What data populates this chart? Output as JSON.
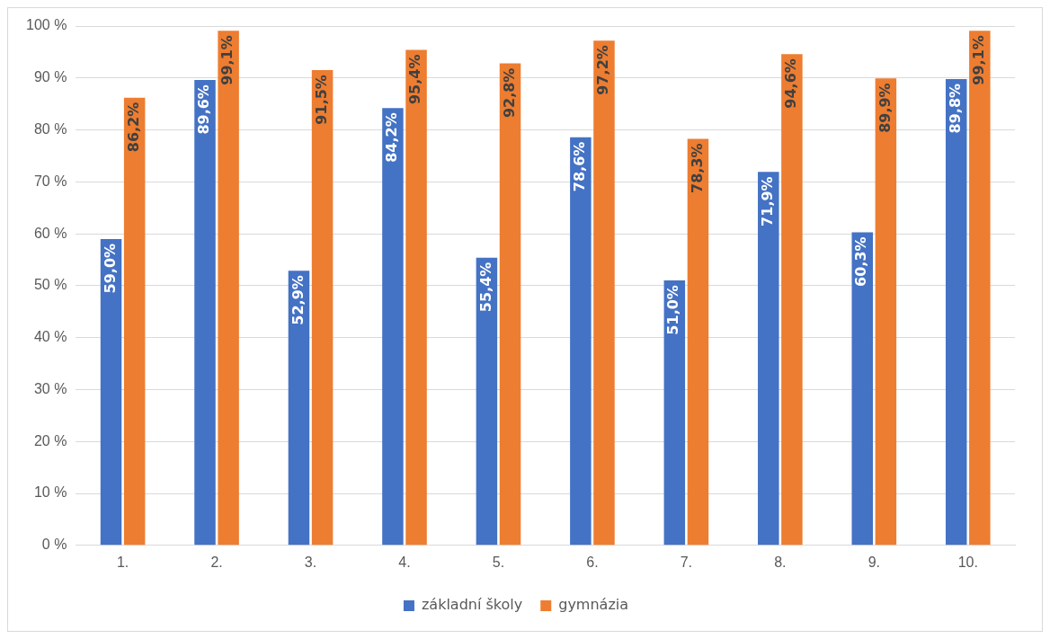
{
  "chart_data": {
    "type": "bar",
    "categories": [
      "1.",
      "2.",
      "3.",
      "4.",
      "5.",
      "6.",
      "7.",
      "8.",
      "9.",
      "10."
    ],
    "series": [
      {
        "name": "základní školy",
        "color": "#4472c4",
        "values": [
          59.0,
          89.6,
          52.9,
          84.2,
          55.4,
          78.6,
          51.0,
          71.9,
          60.3,
          89.8
        ],
        "value_labels": [
          "59,0%",
          "89,6%",
          "52,9%",
          "84,2%",
          "55,4%",
          "78,6%",
          "51,0%",
          "71,9%",
          "60,3%",
          "89,8%"
        ]
      },
      {
        "name": "gymnázia",
        "color": "#ed7d31",
        "values": [
          86.2,
          99.1,
          91.5,
          95.4,
          92.8,
          97.2,
          78.3,
          94.6,
          89.9,
          99.1
        ],
        "value_labels": [
          "86,2%",
          "99,1%",
          "91,5%",
          "95,4%",
          "92,8%",
          "97,2%",
          "78,3%",
          "94,6%",
          "89,9%",
          "99,1%"
        ]
      }
    ],
    "ylim": [
      0,
      100
    ],
    "yticks": [
      {
        "value": 0,
        "label": "0 %"
      },
      {
        "value": 10,
        "label": "10 %"
      },
      {
        "value": 20,
        "label": "20 %"
      },
      {
        "value": 30,
        "label": "30 %"
      },
      {
        "value": 40,
        "label": "40 %"
      },
      {
        "value": 50,
        "label": "50 %"
      },
      {
        "value": 60,
        "label": "60 %"
      },
      {
        "value": 70,
        "label": "70 %"
      },
      {
        "value": 80,
        "label": "80 %"
      },
      {
        "value": 90,
        "label": "90 %"
      },
      {
        "value": 100,
        "label": "100 %"
      }
    ],
    "grid": "y",
    "legend": "bottom"
  }
}
